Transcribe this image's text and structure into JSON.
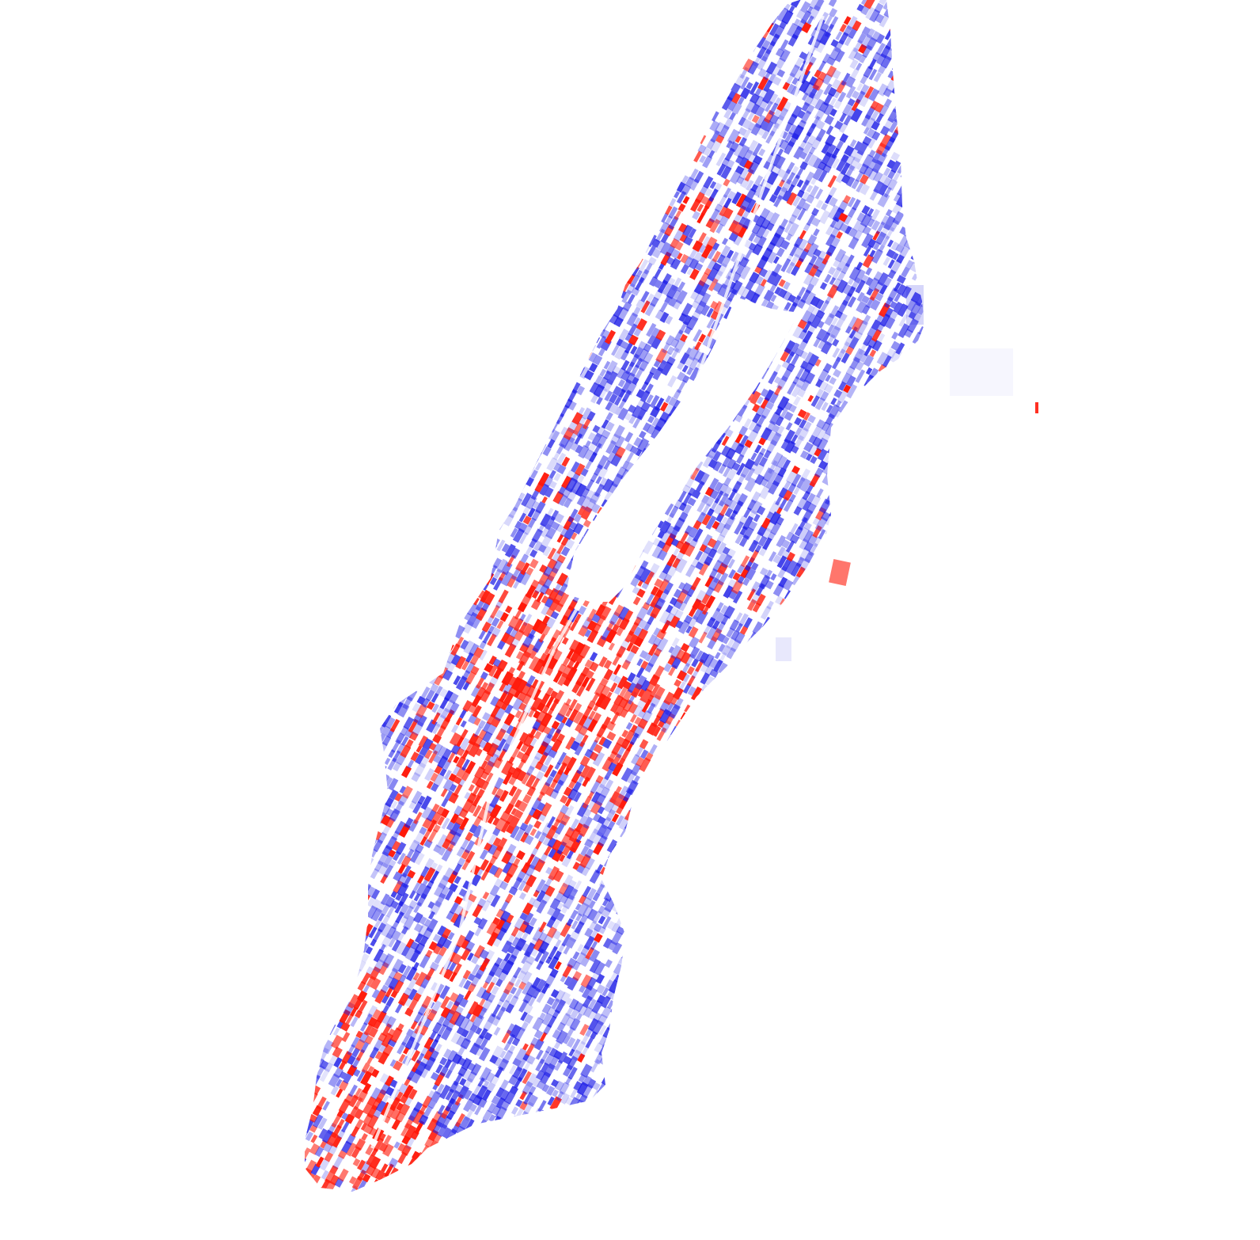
{
  "map": {
    "region": "manhattan",
    "colors": {
      "background": "#ffffff",
      "blue": "#1a1ae6",
      "red": "#ff1a0a"
    },
    "legend": null
  }
}
